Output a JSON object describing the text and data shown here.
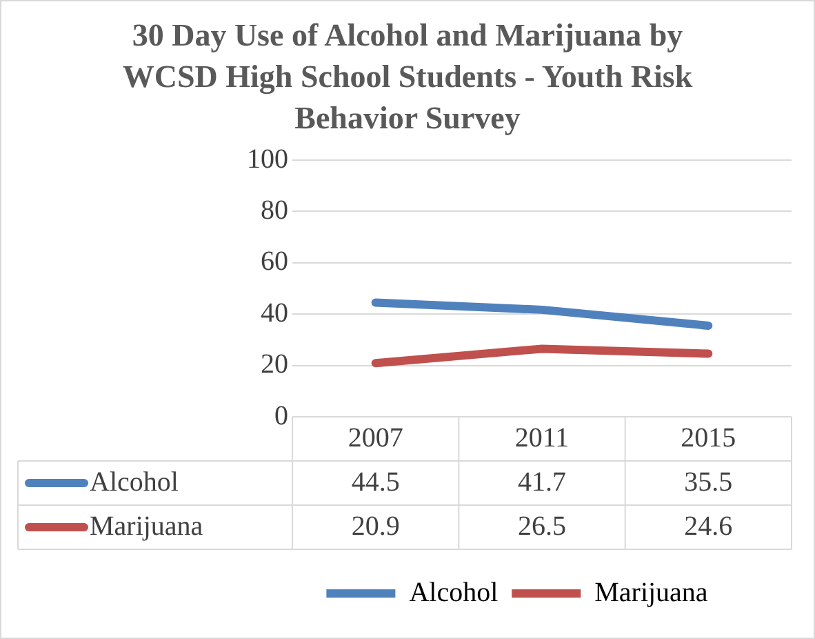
{
  "chart_data": {
    "type": "line",
    "title": "30 Day Use of Alcohol and Marijuana by WCSD High School Students  - Youth Risk Behavior Survey",
    "categories": [
      "2007",
      "2011",
      "2015"
    ],
    "series": [
      {
        "name": "Alcohol",
        "color": "#4f81bd",
        "values": [
          44.5,
          41.7,
          35.5
        ]
      },
      {
        "name": "Marijuana",
        "color": "#c0504d",
        "values": [
          20.9,
          26.5,
          24.6
        ]
      }
    ],
    "ylim": [
      0,
      100
    ],
    "yticks": [
      0,
      20,
      40,
      60,
      80,
      100
    ],
    "grid": "y",
    "legend": "bottom",
    "data_labels": true
  }
}
